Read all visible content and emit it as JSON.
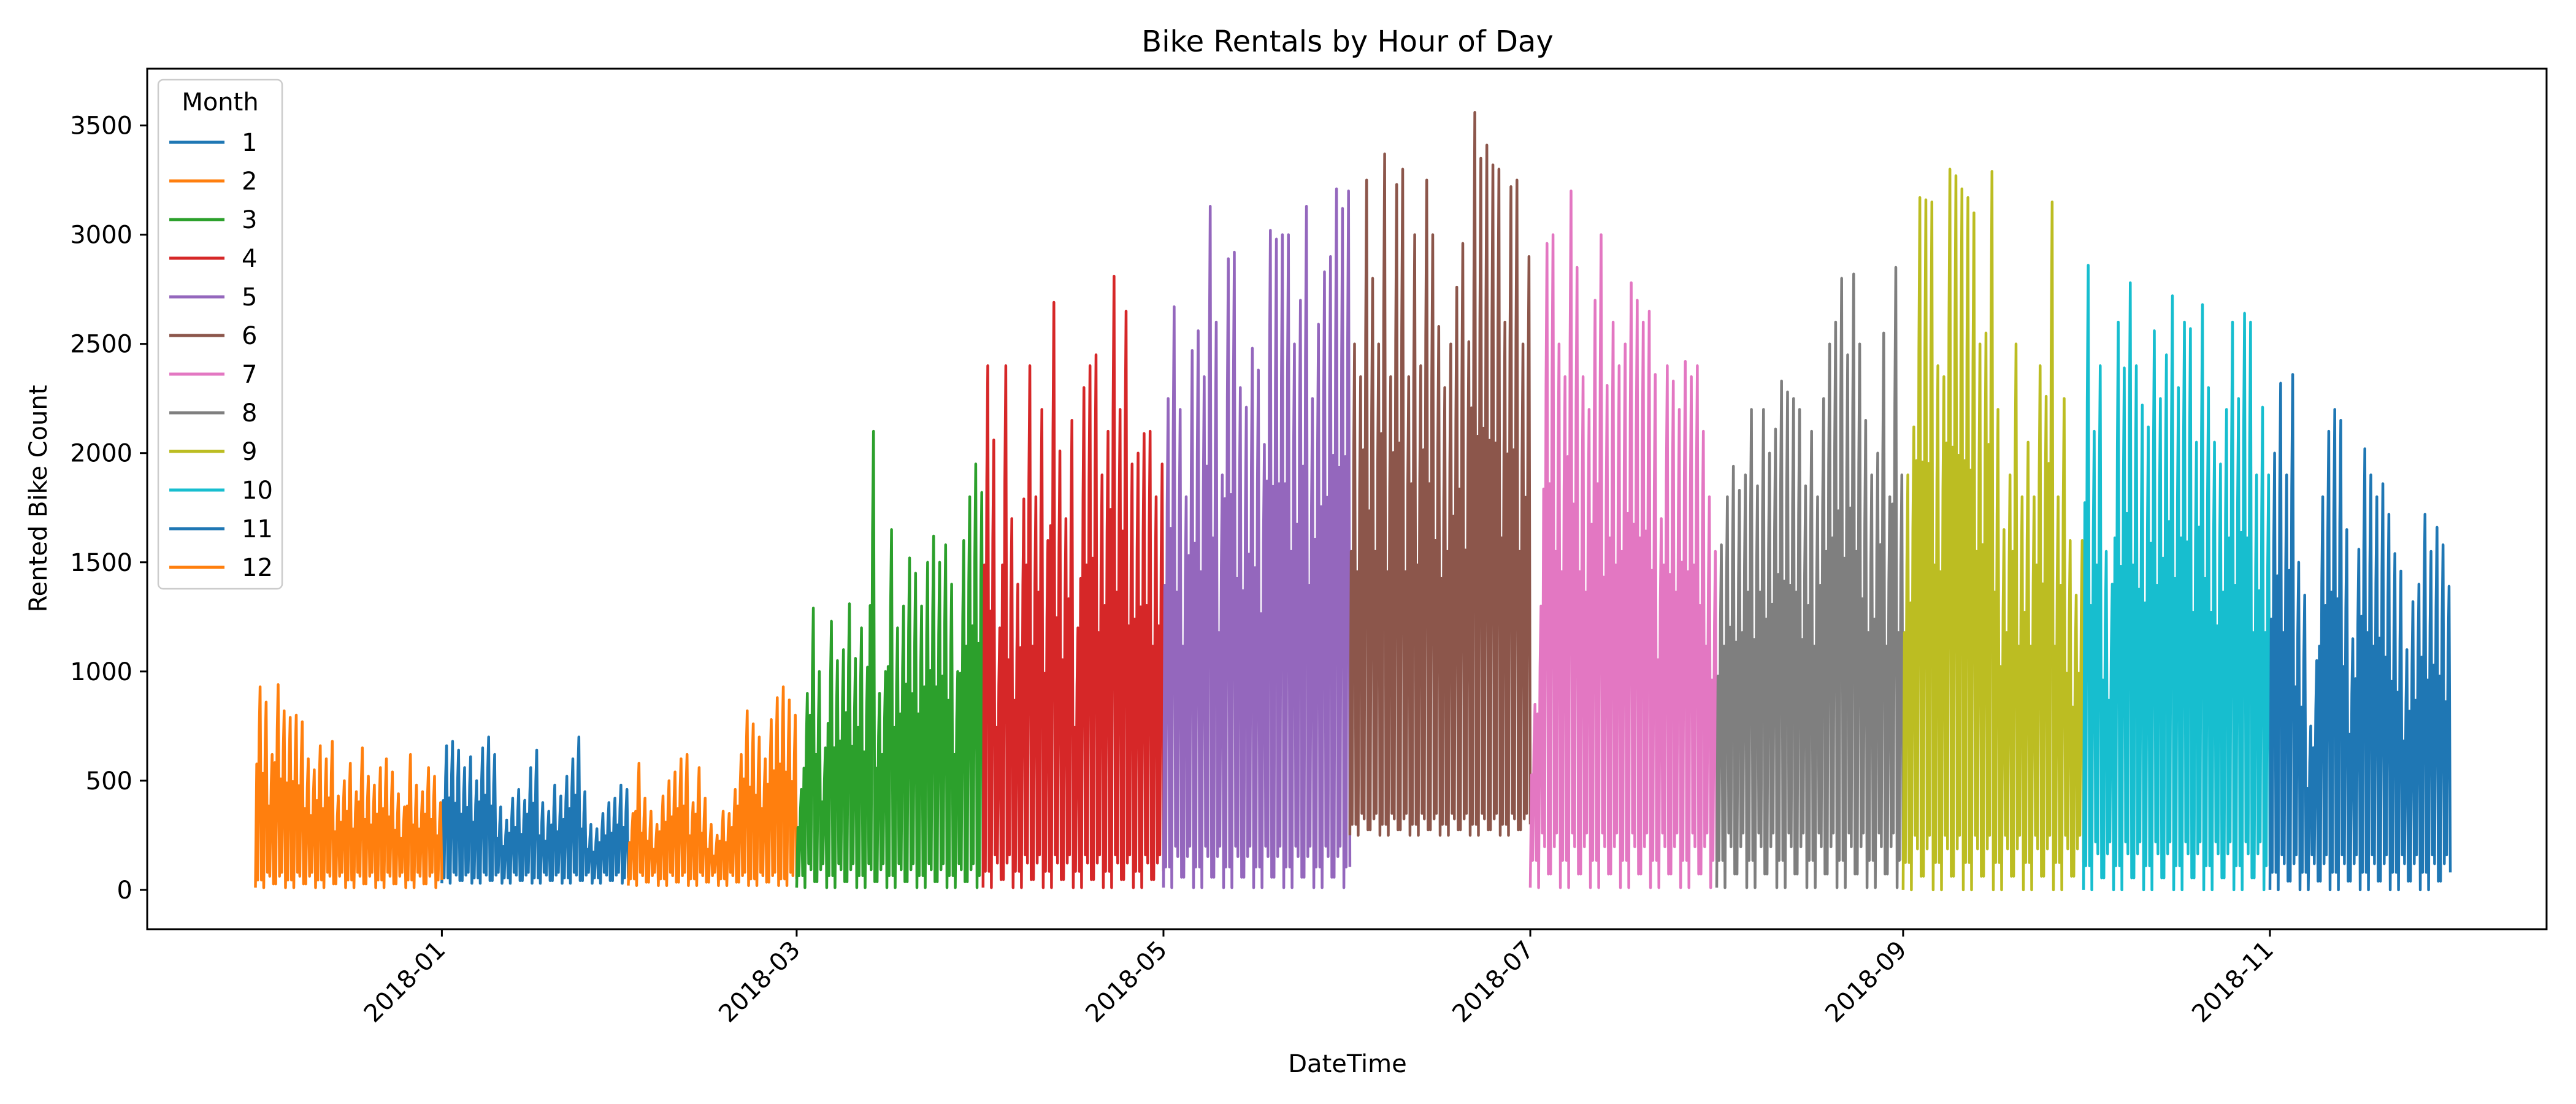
{
  "chart_data": {
    "type": "line",
    "title": "Bike Rentals by Hour of Day",
    "xlabel": "DateTime",
    "ylabel": "Rented Bike Count",
    "xlim": [
      "2017-11-13",
      "2018-12-17"
    ],
    "ylim": [
      -180,
      3760
    ],
    "x_ticks": [
      "2018-01",
      "2018-03",
      "2018-05",
      "2018-07",
      "2018-09",
      "2018-11"
    ],
    "y_ticks": [
      0,
      500,
      1000,
      1500,
      2000,
      2500,
      3000,
      3500
    ],
    "grid": false,
    "legend": {
      "title": "Month",
      "position": "top-left"
    },
    "series": [
      {
        "name": "1",
        "color": "#1f77b4",
        "start": "2018-01-01",
        "end": "2018-01-31",
        "base_min": 30,
        "base_max": 80,
        "peaks": [
          660,
          680,
          640,
          560,
          610,
          500,
          650,
          700,
          620,
          380,
          320,
          420,
          460,
          410,
          560,
          640,
          400,
          360,
          480,
          430,
          520,
          600,
          700,
          450,
          300,
          280,
          350,
          400,
          420,
          480,
          460
        ]
      },
      {
        "name": "2",
        "color": "#ff7f0e",
        "start": "2018-02-01",
        "end": "2018-02-28",
        "base_min": 20,
        "base_max": 80,
        "peaks": [
          350,
          580,
          420,
          360,
          300,
          430,
          500,
          540,
          600,
          620,
          400,
          560,
          420,
          300,
          250,
          360,
          350,
          460,
          620,
          820,
          760,
          700,
          600,
          780,
          880,
          930,
          870,
          800
        ]
      },
      {
        "name": "3",
        "color": "#2ca02c",
        "start": "2018-03-01",
        "end": "2018-03-31",
        "base_min": 10,
        "base_max": 120,
        "peaks": [
          460,
          900,
          1290,
          1000,
          650,
          1230,
          1050,
          1100,
          1310,
          1060,
          1200,
          1020,
          2100,
          900,
          1000,
          1650,
          1200,
          1300,
          1520,
          1450,
          1300,
          1500,
          1620,
          1500,
          1580,
          1400,
          1000,
          1600,
          1800,
          1950,
          1820
        ]
      },
      {
        "name": "4",
        "color": "#d62728",
        "start": "2018-04-01",
        "end": "2018-04-30",
        "base_min": 10,
        "base_max": 160,
        "peaks": [
          2400,
          2060,
          1200,
          2400,
          1700,
          1400,
          1790,
          2400,
          1800,
          2200,
          1600,
          2690,
          2010,
          1700,
          2150,
          1200,
          2300,
          2400,
          2450,
          1900,
          2100,
          2810,
          2200,
          2650,
          1950,
          2000,
          2090,
          2100,
          1800,
          1950
        ]
      },
      {
        "name": "5",
        "color": "#9467bd",
        "start": "2018-05-01",
        "end": "2018-05-31",
        "base_min": 10,
        "base_max": 200,
        "peaks": [
          2250,
          2670,
          2200,
          1800,
          2470,
          2560,
          2350,
          3130,
          2600,
          1900,
          2890,
          2920,
          2300,
          2210,
          2480,
          2380,
          2040,
          3020,
          2980,
          3000,
          3000,
          2500,
          2700,
          3130,
          2250,
          2590,
          2830,
          2900,
          3210,
          3120,
          3200
        ]
      },
      {
        "name": "6",
        "color": "#8c564b",
        "start": "2018-06-01",
        "end": "2018-06-30",
        "base_min": 250,
        "base_max": 350,
        "peaks": [
          2500,
          2350,
          3250,
          2800,
          2500,
          3370,
          2350,
          3230,
          3300,
          2350,
          3000,
          2400,
          3250,
          3000,
          2580,
          2300,
          2500,
          2760,
          2960,
          2510,
          3560,
          3350,
          3410,
          3320,
          3300,
          2600,
          3220,
          3250,
          2500,
          2900
        ]
      },
      {
        "name": "7",
        "color": "#e377c2",
        "start": "2018-07-01",
        "end": "2018-07-31",
        "base_min": 10,
        "base_max": 260,
        "peaks": [
          850,
          1300,
          2960,
          3000,
          2500,
          2350,
          3200,
          2850,
          2350,
          2200,
          2700,
          3000,
          2310,
          2600,
          2400,
          2500,
          2780,
          2700,
          2600,
          2650,
          2360,
          1700,
          2400,
          2330,
          2200,
          2420,
          2350,
          2400,
          2100,
          1800,
          1550
        ]
      },
      {
        "name": "8",
        "color": "#7f7f7f",
        "start": "2018-08-01",
        "end": "2018-08-31",
        "base_min": 10,
        "base_max": 260,
        "peaks": [
          1580,
          1800,
          1940,
          1830,
          1900,
          2200,
          1850,
          2200,
          2000,
          2110,
          2330,
          2280,
          2250,
          2200,
          1850,
          2100,
          1800,
          2250,
          2500,
          2600,
          2800,
          2450,
          2820,
          2500,
          2150,
          1900,
          2000,
          2550,
          1800,
          2850,
          1900
        ]
      },
      {
        "name": "9",
        "color": "#bcbd22",
        "start": "2018-09-01",
        "end": "2018-09-30",
        "base_min": 0,
        "base_max": 250,
        "peaks": [
          1900,
          2120,
          3170,
          3160,
          3150,
          2400,
          2350,
          3300,
          3270,
          3210,
          3170,
          3100,
          2500,
          2550,
          3290,
          2200,
          1650,
          1900,
          2500,
          1800,
          2050,
          1800,
          2400,
          2260,
          3150,
          1800,
          2250,
          1600,
          1350,
          1600
        ]
      },
      {
        "name": "10",
        "color": "#17becf",
        "start": "2018-10-01",
        "end": "2018-10-31",
        "base_min": 0,
        "base_max": 220,
        "peaks": [
          2860,
          2100,
          2400,
          1550,
          1400,
          2600,
          2390,
          2780,
          2400,
          2220,
          2120,
          2560,
          2250,
          2450,
          2720,
          2300,
          2600,
          2570,
          2050,
          2680,
          2300,
          2050,
          1950,
          2200,
          2600,
          2250,
          2640,
          2600,
          1900,
          2210,
          1900
        ]
      },
      {
        "name": "11",
        "color": "#1f77b4",
        "start": "2018-11-01",
        "end": "2018-11-30",
        "base_min": 0,
        "base_max": 160,
        "peaks": [
          2000,
          2320,
          1900,
          2360,
          1500,
          1350,
          750,
          1050,
          1800,
          2100,
          2200,
          2150,
          1650,
          1150,
          1560,
          2020,
          1900,
          1800,
          1860,
          1720,
          1540,
          1460,
          1100,
          1320,
          1400,
          1720,
          1550,
          1660,
          1580,
          1390
        ]
      },
      {
        "name": "12",
        "color": "#ff7f0e",
        "start": "2017-12-01",
        "end": "2017-12-31",
        "base_min": 10,
        "base_max": 80,
        "peaks": [
          930,
          860,
          620,
          940,
          820,
          790,
          800,
          770,
          600,
          550,
          660,
          600,
          680,
          430,
          500,
          580,
          450,
          650,
          520,
          480,
          560,
          600,
          540,
          440,
          380,
          620,
          480,
          450,
          560,
          520,
          400
        ]
      }
    ]
  }
}
